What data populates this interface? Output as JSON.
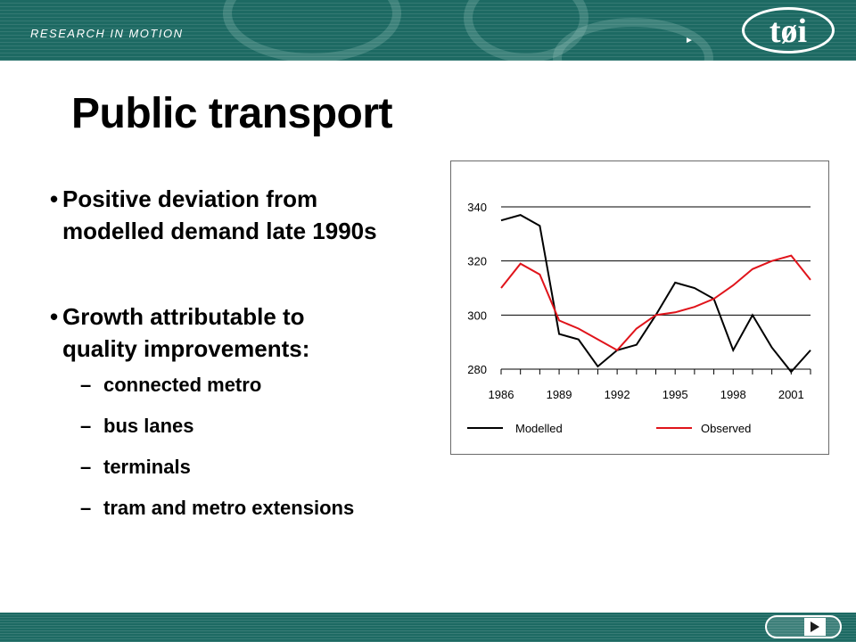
{
  "header": {
    "tagline": "RESEARCH IN MOTION",
    "logo_text": "tøi",
    "arrow": "►"
  },
  "slide": {
    "title": "Public transport",
    "bullets": [
      {
        "text_line1": "Positive deviation from",
        "text_line2": "modelled demand late 1990s"
      },
      {
        "text_line1": "Growth attributable to",
        "text_line2": "quality improvements:"
      }
    ],
    "sub_bullets": [
      "connected metro",
      "bus lanes",
      "terminals",
      "tram and metro extensions"
    ],
    "bullet_glyph": "•",
    "dash_glyph": "–"
  },
  "nav": {
    "next_icon": "next-arrow-icon"
  },
  "colors": {
    "banner": "#1d6a63",
    "modelled": "#000000",
    "observed": "#e0141b"
  },
  "chart_data": {
    "type": "line",
    "x": [
      1986,
      1987,
      1988,
      1989,
      1990,
      1991,
      1992,
      1993,
      1994,
      1995,
      1996,
      1997,
      1998,
      1999,
      2000,
      2001,
      2002
    ],
    "xticks": [
      1986,
      1989,
      1992,
      1995,
      1998,
      2001
    ],
    "yticks": [
      280,
      300,
      320,
      340
    ],
    "ylim": [
      280,
      340
    ],
    "grid": true,
    "legend": "bottom",
    "series": [
      {
        "name": "Modelled",
        "color": "#000000",
        "values": [
          335,
          337,
          333,
          293,
          291,
          281,
          287,
          289,
          300,
          312,
          310,
          306,
          287,
          300,
          288,
          279,
          287
        ]
      },
      {
        "name": "Observed",
        "color": "#e0141b",
        "values": [
          310,
          319,
          315,
          298,
          295,
          291,
          287,
          295,
          300,
          301,
          303,
          306,
          311,
          317,
          320,
          322,
          313
        ]
      }
    ]
  }
}
